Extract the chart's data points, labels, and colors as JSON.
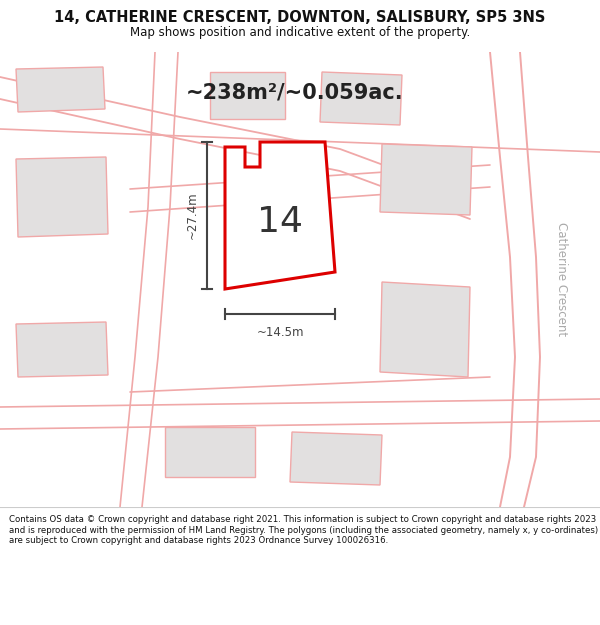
{
  "title_line1": "14, CATHERINE CRESCENT, DOWNTON, SALISBURY, SP5 3NS",
  "title_line2": "Map shows position and indicative extent of the property.",
  "area_text": "~238m²/~0.059ac.",
  "label_14": "14",
  "dim_vertical": "~27.4m",
  "dim_horizontal": "~14.5m",
  "road_label": "Catherine Crescent",
  "footer_text": "Contains OS data © Crown copyright and database right 2021. This information is subject to Crown copyright and database rights 2023 and is reproduced with the permission of HM Land Registry. The polygons (including the associated geometry, namely x, y co-ordinates) are subject to Crown copyright and database rights 2023 Ordnance Survey 100026316.",
  "bg_color": "#f5f3f3",
  "map_bg": "#f5f3f3",
  "plot_fill": "#ffffff",
  "plot_edge": "#dd0000",
  "neighbor_fill": "#e2e0e0",
  "neighbor_edge": "#f0a8a8",
  "road_line_color": "#f0a8a8",
  "title_bg": "#ffffff",
  "footer_bg": "#ffffff",
  "dim_line_color": "#444444",
  "road_label_color": "#aaaaaa",
  "label_color": "#333333",
  "area_color": "#222222"
}
